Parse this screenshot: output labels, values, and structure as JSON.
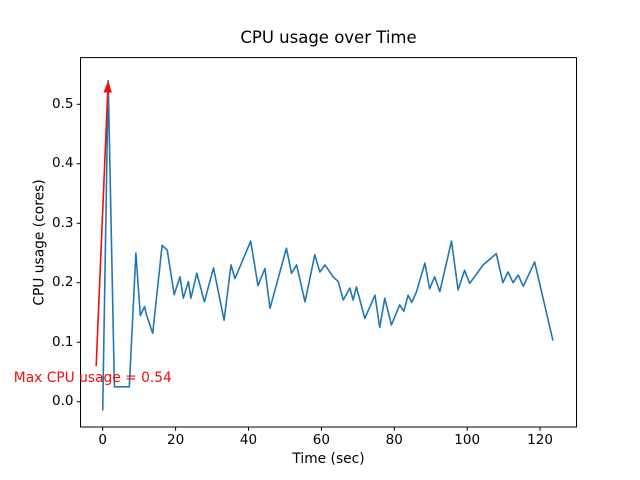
{
  "chart_data": {
    "type": "line",
    "title": "CPU usage over Time",
    "xlabel": "Time (sec)",
    "ylabel": "CPU usage (cores)",
    "xlim": [
      -6.1,
      130.0
    ],
    "ylim": [
      -0.0425,
      0.5785
    ],
    "grid": false,
    "legend": "none",
    "line_color": "#1f77b4",
    "xticks": {
      "values": [
        0,
        20,
        40,
        60,
        80,
        100,
        120
      ],
      "labels": [
        "0",
        "20",
        "40",
        "60",
        "80",
        "100",
        "120"
      ]
    },
    "yticks": {
      "values": [
        0.0,
        0.1,
        0.2,
        0.3,
        0.4,
        0.5
      ],
      "labels": [
        "0.0",
        "0.1",
        "0.2",
        "0.3",
        "0.4",
        "0.5"
      ]
    },
    "series": [
      {
        "name": "cpu_usage",
        "x": [
          0,
          1.5,
          3.2,
          5,
          7.3,
          9.1,
          10.3,
          11.5,
          11.9,
          13.7,
          16.3,
          17.7,
          19.6,
          21.2,
          22.1,
          23.5,
          24.2,
          25.8,
          27.9,
          30.4,
          33.3,
          35.2,
          36.3,
          40.6,
          42.6,
          44.5,
          45.9,
          50.4,
          51.8,
          53.2,
          55.5,
          58.2,
          59.6,
          61,
          63.2,
          64.6,
          66,
          67.8,
          68.7,
          69.6,
          71.9,
          74.7,
          76,
          77.4,
          79.2,
          81.5,
          82.6,
          83.8,
          84.8,
          86.1,
          88.4,
          89.7,
          91.1,
          92.5,
          95.7,
          97.5,
          99.3,
          100.7,
          104.4,
          108,
          109.8,
          111.2,
          112.6,
          114,
          115.4,
          118.5,
          123.5
        ],
        "values": [
          -0.014,
          0.54,
          0.025,
          0.025,
          0.025,
          0.25,
          0.145,
          0.16,
          0.148,
          0.115,
          0.263,
          0.255,
          0.18,
          0.21,
          0.174,
          0.202,
          0.174,
          0.216,
          0.168,
          0.225,
          0.137,
          0.23,
          0.207,
          0.27,
          0.195,
          0.224,
          0.157,
          0.258,
          0.216,
          0.23,
          0.168,
          0.247,
          0.218,
          0.23,
          0.21,
          0.202,
          0.171,
          0.191,
          0.171,
          0.193,
          0.14,
          0.179,
          0.125,
          0.174,
          0.129,
          0.163,
          0.152,
          0.179,
          0.167,
          0.185,
          0.233,
          0.19,
          0.21,
          0.185,
          0.27,
          0.188,
          0.221,
          0.199,
          0.23,
          0.249,
          0.2,
          0.218,
          0.2,
          0.213,
          0.194,
          0.235,
          0.104
        ]
      }
    ],
    "annotation": {
      "text": "Max CPU usage = 0.54",
      "value": 0.54,
      "color": "#f10e0e",
      "arrow_tip": {
        "x": 1.5,
        "y": 0.54
      },
      "arrow_tail": {
        "x": -1.8,
        "y": 0.06
      },
      "text_pos": {
        "x": -24.4,
        "y": 0.031
      }
    }
  }
}
